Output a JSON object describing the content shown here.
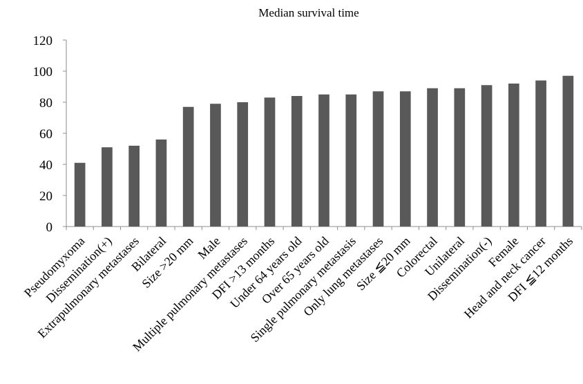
{
  "chart_data": {
    "type": "bar",
    "title": "Median survival time",
    "xlabel": "",
    "ylabel": "",
    "ylim": [
      0,
      120
    ],
    "y_ticks": [
      0,
      20,
      40,
      60,
      80,
      100,
      120
    ],
    "grid": false,
    "legend": "none",
    "bar_color": "#595959",
    "categories": [
      "Pseudomyxoma",
      "Dissemination(+)",
      "Extrapulmonary metastases",
      "Bilateral",
      "Size >20 mm",
      "Male",
      "Multiple pulmonary metastases",
      "DFI >13 months",
      "Under 64 years old",
      "Over 65 years old",
      "Single pulmonary metastasis",
      "Only lung metastases",
      "Size ≦20 mm",
      "Colorectal",
      "Unilateral",
      "Dissemination(-)",
      "Female",
      "Head and neck cancer",
      "DFI ≦12 months"
    ],
    "values": [
      41,
      51,
      52,
      56,
      77,
      79,
      80,
      83,
      84,
      85,
      85,
      87,
      87,
      89,
      89,
      91,
      92,
      94,
      97
    ]
  }
}
